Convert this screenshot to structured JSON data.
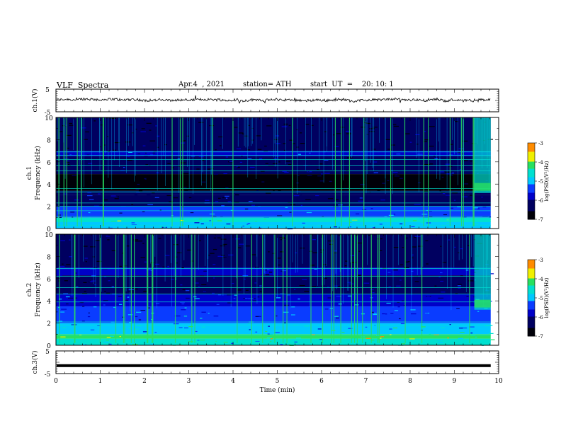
{
  "header": {
    "title": "VLF  Spectra",
    "date": "Apr.4  , 2021",
    "station": "station= ATH",
    "start": "start  UT  =    20: 10: 1"
  },
  "colors": {
    "sg_black": "#000008",
    "sg_navy": "#000060",
    "sg_blue": "#0000c8",
    "sg_blue2": "#0a3cff",
    "sg_cyan": "#00c8ff",
    "sg_cyan2": "#00e0d0",
    "sg_green": "#28e060",
    "sg_yellow": "#f0f000",
    "sg_orange": "#ff8c00",
    "sg_red": "#ff0000",
    "trace": "#000000"
  },
  "chart_data": [
    {
      "type": "line",
      "panel": "ch1-waveform",
      "ylabel": "ch.1(V)",
      "ylim": [
        -5,
        5
      ],
      "yticks": [
        "5",
        "-5"
      ],
      "xlim": [
        0,
        10
      ],
      "note_level_v": 0.2
    },
    {
      "type": "heatmap",
      "panel": "ch1-spectrogram",
      "ylabel": "ch.1\nFrequency (kHz)",
      "ylim": [
        0,
        10
      ],
      "yticks": [
        "0",
        "2",
        "4",
        "6",
        "8",
        "10"
      ],
      "xlim": [
        0,
        10
      ],
      "colorbar": {
        "label": "log(PSD)(V²/Hz)",
        "range": [
          -7,
          -3
        ],
        "ticks": [
          "-3",
          "-4",
          "-5",
          "-6",
          "-7"
        ]
      },
      "bands": [
        {
          "from": 0,
          "to": 0.6,
          "level": -5.2
        },
        {
          "from": 0.6,
          "to": 1.0,
          "level": -4.6
        },
        {
          "from": 1.0,
          "to": 2.0,
          "level": -5.6
        },
        {
          "from": 2.0,
          "to": 3.0,
          "level": -6.2
        },
        {
          "from": 3.0,
          "to": 3.4,
          "level": -6.4
        },
        {
          "from": 3.4,
          "to": 4.9,
          "level": -6.9
        },
        {
          "from": 4.9,
          "to": 6.5,
          "level": -6.3
        },
        {
          "from": 6.5,
          "to": 7.0,
          "level": -5.8
        },
        {
          "from": 7.0,
          "to": 10.0,
          "level": -6.6
        }
      ],
      "lines_khz": [
        0.3,
        0.6,
        0.8,
        1.1,
        1.6,
        2.0,
        2.3,
        3.3,
        3.6,
        5.2,
        5.7,
        6.2,
        6.6,
        6.9
      ]
    },
    {
      "type": "heatmap",
      "panel": "ch2-spectrogram",
      "ylabel": "ch.2\nFrequency (kHz)",
      "ylim": [
        0,
        10
      ],
      "yticks": [
        "0",
        "2",
        "4",
        "6",
        "8",
        "10"
      ],
      "xlim": [
        0,
        10
      ],
      "colorbar": {
        "label": "log(PSD)(V²/Hz)",
        "range": [
          -7,
          -3
        ],
        "ticks": [
          "-3",
          "-4",
          "-5",
          "-6",
          "-7"
        ]
      },
      "bands": [
        {
          "from": 0,
          "to": 0.6,
          "level": -4.8
        },
        {
          "from": 0.6,
          "to": 1.0,
          "level": -4.2
        },
        {
          "from": 1.0,
          "to": 2.0,
          "level": -5.0
        },
        {
          "from": 2.0,
          "to": 3.5,
          "level": -5.4
        },
        {
          "from": 3.5,
          "to": 4.6,
          "level": -5.8
        },
        {
          "from": 4.6,
          "to": 6.3,
          "level": -6.2
        },
        {
          "from": 6.3,
          "to": 7.0,
          "level": -5.9
        },
        {
          "from": 7.0,
          "to": 10.0,
          "level": -6.6
        }
      ],
      "lines_khz": [
        0.4,
        0.9,
        1.8,
        2.1,
        3.9,
        4.6,
        5.2,
        6.2,
        6.9
      ]
    },
    {
      "type": "line",
      "panel": "ch3-waveform",
      "ylabel": "ch.3(V)",
      "ylim": [
        -5,
        5
      ],
      "yticks": [
        "5",
        "-5"
      ],
      "xlim": [
        0,
        10
      ],
      "level_v": -1.5
    }
  ],
  "xaxis": {
    "label": "Time  (min)",
    "ticks": [
      "0",
      "1",
      "2",
      "3",
      "4",
      "5",
      "6",
      "7",
      "8",
      "9",
      "10"
    ],
    "data_end_min": 9.82
  }
}
